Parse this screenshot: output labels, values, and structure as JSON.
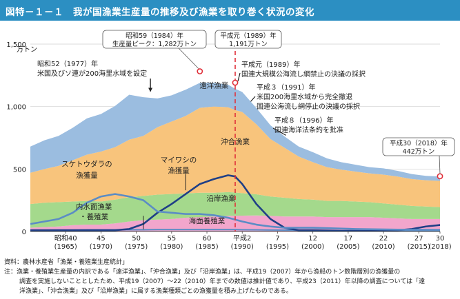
{
  "header": {
    "title": "図特－１－１　我が国漁業生産量の推移及び漁業を取り巻く状況の変化"
  },
  "notes": {
    "source": "資料：農林水産省「漁業・養殖業生産統計」",
    "note1": "注：漁業・養殖業生産量の内訳である「遠洋漁業」、「沖合漁業」及び「沿岸漁業」は、平成19（2007）年から漁船のトン数階層別の漁獲量の",
    "note2": "調査を実施しないこととしたため、平成19（2007）～22（2010）年までの数値は推計値であり、平成23（2011）年以降の調査については「遠",
    "note3": "洋漁業」、「沖合漁業」及び「沿岸漁業」に属する漁業種類ごとの漁獲量を積み上げたものである。"
  },
  "chart_data": {
    "type": "area",
    "ylabel": "万トン",
    "ylim": [
      0,
      1500
    ],
    "yticks": [
      "0",
      "500",
      "1,000",
      "1,500"
    ],
    "xlim": [
      1960,
      2018
    ],
    "xticks": [
      {
        "x": 1965,
        "top": "昭和40",
        "bottom": "(1965)"
      },
      {
        "x": 1970,
        "top": "45",
        "bottom": "(1970)"
      },
      {
        "x": 1975,
        "top": "50",
        "bottom": "(1975)"
      },
      {
        "x": 1980,
        "top": "55",
        "bottom": "(1980)"
      },
      {
        "x": 1985,
        "top": "60",
        "bottom": "(1985)"
      },
      {
        "x": 1990,
        "top": "平成2",
        "bottom": "(1990)"
      },
      {
        "x": 1995,
        "top": "7",
        "bottom": "(1995)"
      },
      {
        "x": 2000,
        "top": "12",
        "bottom": "(2000)"
      },
      {
        "x": 2005,
        "top": "17",
        "bottom": "(2005)"
      },
      {
        "x": 2010,
        "top": "22",
        "bottom": "(2010)"
      },
      {
        "x": 2015,
        "top": "27",
        "bottom": "(2015)"
      },
      {
        "x": 2018,
        "top": "30",
        "bottom": "(2018)"
      }
    ],
    "x": [
      1960,
      1962,
      1964,
      1966,
      1968,
      1970,
      1972,
      1974,
      1976,
      1978,
      1980,
      1982,
      1984,
      1986,
      1988,
      1989,
      1990,
      1992,
      1994,
      1996,
      1998,
      2000,
      2002,
      2004,
      2006,
      2008,
      2010,
      2012,
      2014,
      2016,
      2018
    ],
    "series": [
      {
        "name": "海面養殖業",
        "color": "#f2a6cc",
        "values": [
          30,
          35,
          40,
          50,
          55,
          55,
          65,
          80,
          90,
          95,
          100,
          110,
          115,
          120,
          125,
          127,
          127,
          128,
          125,
          120,
          120,
          120,
          115,
          115,
          115,
          115,
          110,
          105,
          100,
          100,
          100
        ]
      },
      {
        "name": "沿岸漁業",
        "color": "#a4d98c",
        "values": [
          190,
          195,
          195,
          190,
          190,
          185,
          190,
          195,
          195,
          200,
          200,
          195,
          195,
          190,
          190,
          185,
          180,
          170,
          155,
          150,
          140,
          135,
          130,
          130,
          125,
          120,
          115,
          110,
          105,
          100,
          95
        ]
      },
      {
        "name": "沖合漁業",
        "color": "#f8c47c",
        "values": [
          250,
          270,
          290,
          330,
          370,
          400,
          420,
          460,
          480,
          540,
          580,
          620,
          680,
          690,
          680,
          660,
          650,
          560,
          460,
          400,
          340,
          300,
          270,
          250,
          240,
          230,
          230,
          225,
          215,
          210,
          210
        ]
      },
      {
        "name": "遠洋漁業",
        "color": "#9bbde0",
        "values": [
          210,
          230,
          240,
          260,
          290,
          300,
          330,
          360,
          310,
          230,
          210,
          210,
          200,
          190,
          180,
          170,
          160,
          130,
          110,
          90,
          80,
          80,
          70,
          60,
          55,
          50,
          50,
          45,
          40,
          35,
          35
        ]
      },
      {
        "name": "内水面漁業・養殖業",
        "color": "#5b8cc5",
        "kind": "line",
        "values": [
          10,
          11,
          12,
          12,
          13,
          13,
          13,
          14,
          14,
          15,
          15,
          15,
          15,
          15,
          15,
          15,
          14,
          13,
          12,
          11,
          10,
          8,
          7,
          6,
          6,
          5,
          5,
          5,
          4,
          4,
          4
        ]
      }
    ],
    "lines": [
      {
        "name": "マイワシの漁獲量",
        "color": "#1f3f86",
        "x": [
          1960,
          1966,
          1972,
          1974,
          1976,
          1978,
          1980,
          1982,
          1984,
          1986,
          1988,
          1989,
          1990,
          1992,
          1994,
          1996,
          1998,
          2000,
          2004,
          2008,
          2012,
          2014,
          2016,
          2018
        ],
        "values": [
          10,
          10,
          10,
          20,
          60,
          150,
          220,
          300,
          380,
          420,
          450,
          440,
          380,
          220,
          100,
          30,
          10,
          10,
          5,
          5,
          10,
          20,
          40,
          52
        ]
      },
      {
        "name": "スケトウダラの漁獲量",
        "color": "#5b8cc5",
        "x": [
          1960,
          1962,
          1964,
          1966,
          1968,
          1970,
          1972,
          1974,
          1976,
          1978,
          1980,
          1982,
          1984,
          1986,
          1988,
          1990,
          1992,
          1994,
          1996,
          2000,
          2006,
          2012,
          2018
        ],
        "values": [
          60,
          80,
          100,
          150,
          230,
          280,
          300,
          280,
          250,
          160,
          150,
          140,
          140,
          130,
          110,
          80,
          55,
          40,
          30,
          30,
          20,
          15,
          13
        ]
      }
    ],
    "total": [
      690,
      730,
      780,
      830,
      910,
      940,
      1010,
      1090,
      1065,
      1065,
      1105,
      1135,
      1282,
      1240,
      1225,
      1191,
      1120,
      1000,
      850,
      765,
      680,
      640,
      590,
      560,
      540,
      515,
      510,
      490,
      465,
      440,
      442
    ],
    "peak": {
      "x": 1984,
      "value": 1282,
      "label1": "昭和59（1984）年",
      "label2": "生産量ピーク：1,282万トン"
    },
    "vline": {
      "x": 1989,
      "value": 1191,
      "label1": "平成元（1989）年",
      "label2": "1,191万トン"
    },
    "last": {
      "x": 2018,
      "value": 442,
      "label1": "平成30（2018）年",
      "label2": "442万トン"
    },
    "event_1977": [
      "昭和52（1977）年",
      "米国及びソ連が200海里水域を設定"
    ],
    "event_1989": [
      "平成元（1989）年",
      "国連大規模公海流し網禁止の決議の採択"
    ],
    "event_1991": [
      "平成３（1991）年",
      "米国200海里水域から完全撤退",
      "国連公海流し網停止の決議の採択"
    ],
    "event_1996": [
      "平成８（1996）年",
      "国連海洋法条約を批准"
    ],
    "labels": {
      "distant": "遠洋漁業",
      "offshore": "沖合漁業",
      "coastal": "沿岸漁業",
      "aquaculture": "海面養殖業",
      "sukeotodara1": "スケトウダラの",
      "sukeotodara2": "漁獲量",
      "maiwashi1": "マイワシの",
      "maiwashi2": "漁獲量",
      "inland1": "内水面漁業",
      "inland2": "・養殖業"
    }
  }
}
